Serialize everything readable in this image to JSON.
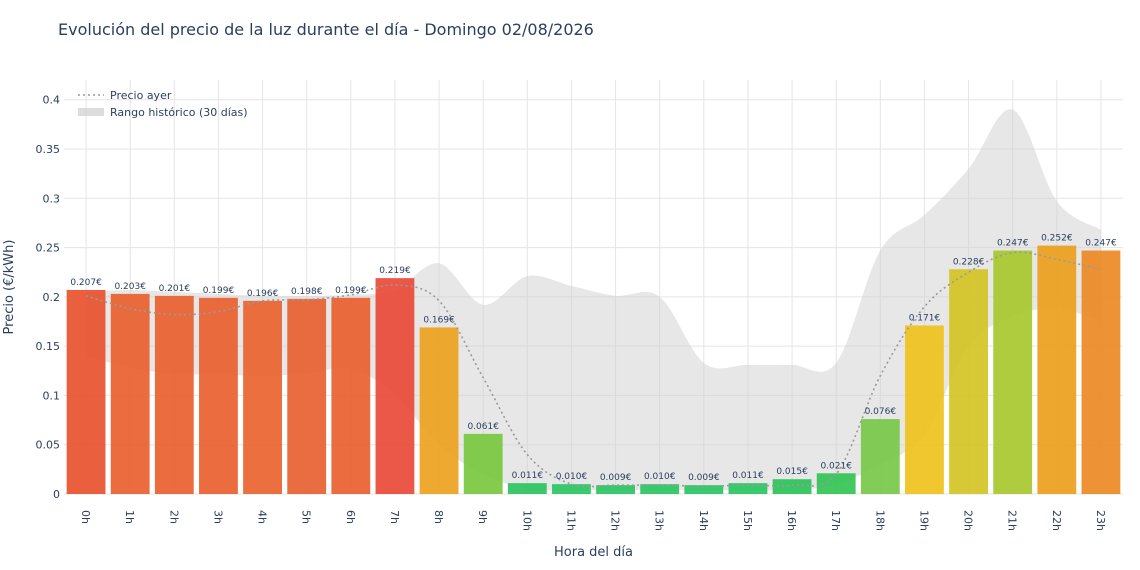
{
  "chart_data": {
    "type": "bar",
    "title": "Evolución del precio de la luz durante el día - Domingo 02/08/2026",
    "xlabel": "Hora del día",
    "ylabel": "Precio (€/kWh)",
    "ylim": [
      0,
      0.42
    ],
    "yticks": [
      "0",
      "0.05",
      "0.1",
      "0.15",
      "0.2",
      "0.25",
      "0.3",
      "0.35",
      "0.4"
    ],
    "categories": [
      "0h",
      "1h",
      "2h",
      "3h",
      "4h",
      "5h",
      "6h",
      "7h",
      "8h",
      "9h",
      "10h",
      "11h",
      "12h",
      "13h",
      "14h",
      "15h",
      "16h",
      "17h",
      "18h",
      "19h",
      "20h",
      "21h",
      "22h",
      "23h"
    ],
    "series": [
      {
        "values": [
          0.207,
          0.203,
          0.201,
          0.199,
          0.196,
          0.198,
          0.199,
          0.219,
          0.169,
          0.061,
          0.011,
          0.01,
          0.009,
          0.01,
          0.009,
          0.011,
          0.015,
          0.021,
          0.076,
          0.171,
          0.228,
          0.247,
          0.252,
          0.247
        ],
        "labels": [
          "0.207€",
          "0.203€",
          "0.201€",
          "0.199€",
          "0.196€",
          "0.198€",
          "0.199€",
          "0.219€",
          "0.169€",
          "0.061€",
          "0.011€",
          "0.010€",
          "0.009€",
          "0.010€",
          "0.009€",
          "0.011€",
          "0.015€",
          "0.021€",
          "0.076€",
          "0.171€",
          "0.228€",
          "0.247€",
          "0.252€",
          "0.247€"
        ],
        "colors": [
          "#e8532e",
          "#e8602f",
          "#e9602f",
          "#e9612f",
          "#ea632f",
          "#e86131",
          "#e9602f",
          "#e94a37",
          "#eda21f",
          "#79c83f",
          "#2bc45f",
          "#2ac562",
          "#2ac563",
          "#2ac562",
          "#2ac563",
          "#2ac562",
          "#2dc25a",
          "#33c355",
          "#79c84a",
          "#f0c21e",
          "#d4c324",
          "#a8c82f",
          "#eca01d",
          "#ec8a24"
        ]
      },
      {
        "name": "Precio ayer",
        "type": "line",
        "values": [
          0.201,
          0.188,
          0.182,
          0.185,
          0.196,
          0.197,
          0.202,
          0.212,
          0.196,
          0.118,
          0.04,
          0.01,
          0.009,
          0.009,
          0.008,
          0.009,
          0.009,
          0.02,
          0.12,
          0.19,
          0.225,
          0.245,
          0.238,
          0.228
        ]
      },
      {
        "name": "Rango histórico (30 días)",
        "type": "area",
        "upper": [
          0.205,
          0.207,
          0.205,
          0.203,
          0.201,
          0.201,
          0.202,
          0.207,
          0.234,
          0.192,
          0.221,
          0.211,
          0.201,
          0.2,
          0.133,
          0.131,
          0.131,
          0.133,
          0.247,
          0.283,
          0.33,
          0.39,
          0.297,
          0.268
        ],
        "lower": [
          0.14,
          0.128,
          0.122,
          0.121,
          0.12,
          0.122,
          0.127,
          0.101,
          0.05,
          0.02,
          0.005,
          0.004,
          0.004,
          0.004,
          0.004,
          0.004,
          0.004,
          0.01,
          0.03,
          0.06,
          0.15,
          0.18,
          0.188,
          0.175
        ]
      }
    ],
    "legend": {
      "position": "top-left"
    }
  },
  "colors": {
    "grid": "#e5e5e5",
    "dotted_line": "#9a9a9a",
    "area": "#cfcfcf"
  }
}
